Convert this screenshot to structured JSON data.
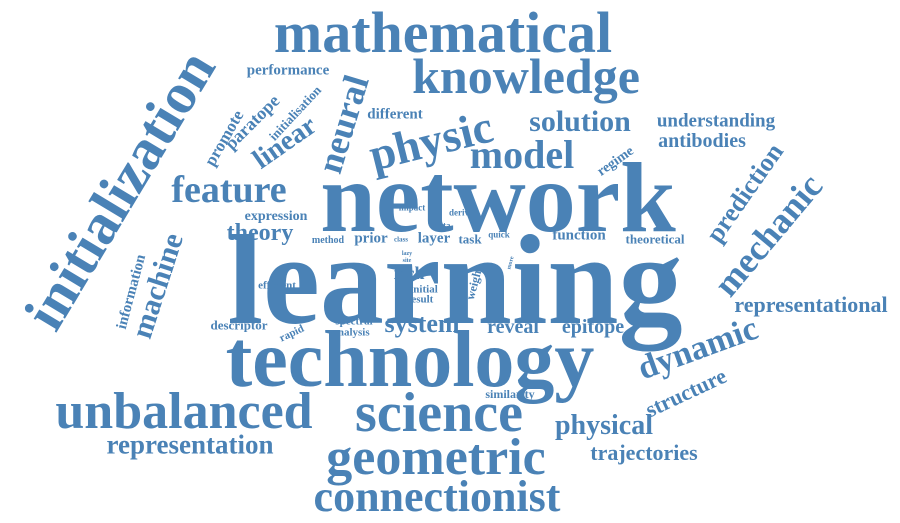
{
  "color": "#4a82b6",
  "words": {
    "learning": "learning",
    "network": "network",
    "technology": "technology",
    "mathematical": "mathematical",
    "knowledge": "knowledge",
    "initialization": "initialization",
    "unbalanced": "unbalanced",
    "science": "science",
    "geometric": "geometric",
    "connectionist": "connectionist",
    "physic": "physic",
    "model": "model",
    "solution": "solution",
    "neural": "neural",
    "feature": "feature",
    "dynamic": "dynamic",
    "mechanic": "mechanic",
    "machine": "machine",
    "representation": "representation",
    "physical": "physical",
    "prediction": "prediction",
    "representational": "representational",
    "structure": "structure",
    "trajectories": "trajectories",
    "linear": "linear",
    "system": "system",
    "theory": "theory",
    "antibodies": "antibodies",
    "understanding": "understanding",
    "reveal": "reveal",
    "epitope": "epitope",
    "function": "function",
    "paratope": "paratope",
    "promote": "promote",
    "performance": "performance",
    "information": "information",
    "initialisation": "initialisation",
    "different": "different",
    "expression": "expression",
    "rich": "rich",
    "prior": "prior",
    "layer": "layer",
    "task": "task",
    "regime": "regime",
    "theoretical": "theoretical",
    "descriptor": "descriptor",
    "spectral": "spectral",
    "analysis": "analysis",
    "rapid": "rapid",
    "efficient": "efficient",
    "weight": "weight",
    "initial": "initial",
    "result": "result",
    "similarity": "similarity",
    "method": "method",
    "impact": "impact",
    "derive": "derive",
    "data": "data",
    "quick": "quick",
    "class": "class",
    "lazy": "lazy",
    "site": "site",
    "more": "more"
  }
}
